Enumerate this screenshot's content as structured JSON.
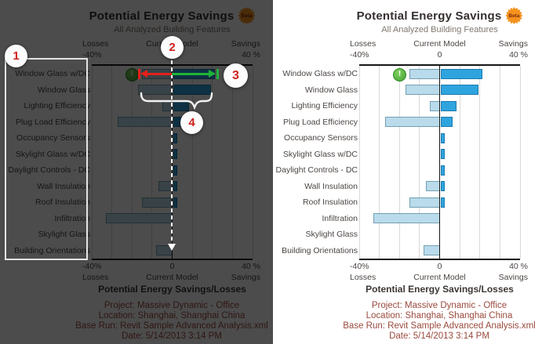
{
  "chart_data": {
    "type": "bar",
    "orientation": "horizontal-diverging",
    "title": "Potential Energy Savings",
    "badge": "Beta",
    "subtitle": "All Analyzed Building Features",
    "xlabel_left": "Losses",
    "xlabel_center": "Current Model",
    "xlabel_right": "Savings",
    "ticks": {
      "min": "-40%",
      "zero": "0",
      "max": "40 %"
    },
    "xlim": [
      -40,
      40
    ],
    "unit": "%",
    "gridline_step": 10,
    "grid": "vertical-only",
    "categories": [
      "Window Glass w/DC",
      "Window Glass",
      "Lighting Efficiency",
      "Plug Load Efficiency",
      "Occupancy Sensors",
      "Skylight Glass w/DC",
      "Daylight Controls - DC",
      "Wall Insulation",
      "Roof Insulation",
      "Infiltration",
      "Skylight Glass",
      "Building Orientations"
    ],
    "series": [
      {
        "name": "Losses",
        "color": "#b9dbeb",
        "values": [
          -15,
          -17,
          -5,
          -27,
          0,
          0,
          0,
          -7,
          -15,
          -33,
          0,
          -8
        ]
      },
      {
        "name": "Savings",
        "color": "#2ea4de",
        "values": [
          21,
          19,
          8,
          6,
          2,
          2,
          2,
          2,
          2,
          0,
          0,
          0
        ]
      }
    ],
    "warning_icon_row": "Window Glass w/DC",
    "caption": "Potential Energy Savings/Losses"
  },
  "footer_lines": [
    "Project: Massive Dynamic - Office",
    "Location: Shanghai, Shanghai China",
    "Base Run: Revit Sample Advanced Analysis.xml",
    "Date: 5/14/2013 3:14 PM"
  ],
  "annotations": {
    "callout_1": "1",
    "callout_2": "2",
    "callout_3": "3",
    "callout_4": "4"
  },
  "colors": {
    "bar_loss": "#b9dbeb",
    "bar_saving": "#2ea4de",
    "badge_orange": "#f5921e",
    "footer_text": "#9a4a3e",
    "callout_number": "#cf201d",
    "warning_green": "#46a636",
    "annotation_red": "#e3201b",
    "annotation_green": "#1fb33a",
    "dim_panel_bg": "#4a4a4a"
  }
}
